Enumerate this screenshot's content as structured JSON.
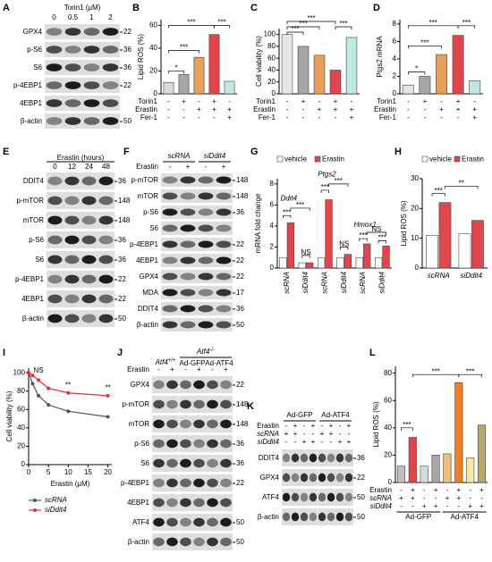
{
  "panels": {
    "A": {
      "letter": "A",
      "title": "Torin1 (μM)",
      "lanes": [
        "0",
        "0.5",
        "1",
        "2"
      ],
      "rows": [
        {
          "label": "GPX4",
          "mw": "22"
        },
        {
          "label": "p-S6",
          "mw": "36"
        },
        {
          "label": "S6",
          "mw": "36"
        },
        {
          "label": "p-4EBP1",
          "mw": "22"
        },
        {
          "label": "4EBP1"
        },
        {
          "label": "β-actin",
          "mw": "50"
        }
      ]
    },
    "B": {
      "letter": "B",
      "chart": {
        "type": "bar",
        "ylabel": "Lipid ROS (%)",
        "ylim": [
          0,
          65
        ],
        "yticks": [
          0,
          20,
          40,
          60
        ],
        "values": [
          10,
          17,
          32,
          52,
          11
        ],
        "colors": [
          "#d9d9d9",
          "#a6a6a6",
          "#e8a15a",
          "#e0474c",
          "#bfe8e2"
        ],
        "conditions": [
          {
            "label": "Torin1",
            "signs": [
              "-",
              "+",
              "-",
              "+",
              "-"
            ]
          },
          {
            "label": "Erastin",
            "signs": [
              "-",
              "-",
              "+",
              "+",
              "+"
            ]
          },
          {
            "label": "Fer-1",
            "signs": [
              "-",
              "-",
              "-",
              "-",
              "+"
            ]
          }
        ],
        "annotations": [
          "*",
          "***",
          "***",
          "***"
        ]
      }
    },
    "C": {
      "letter": "C",
      "chart": {
        "type": "bar",
        "ylabel": "Cell viability (%)",
        "ylim": [
          0,
          110
        ],
        "yticks": [
          0,
          20,
          40,
          60,
          80,
          100
        ],
        "values": [
          100,
          80,
          65,
          40,
          95
        ],
        "colors": [
          "#e6e6e6",
          "#a6a6a6",
          "#e8a15a",
          "#e0474c",
          "#bfe8e2"
        ],
        "conditions": [
          {
            "label": "Torin1",
            "signs": [
              "-",
              "+",
              "-",
              "+",
              "-"
            ]
          },
          {
            "label": "Erastin",
            "signs": [
              "-",
              "-",
              "+",
              "+",
              "+"
            ]
          },
          {
            "label": "Fer-1",
            "signs": [
              "-",
              "-",
              "-",
              "-",
              "+"
            ]
          }
        ],
        "annotations": [
          "***",
          "***",
          "***",
          "***"
        ]
      }
    },
    "D": {
      "letter": "D",
      "chart": {
        "type": "bar",
        "ylabel": "Ptgs2 mRNA",
        "ylim": [
          0,
          8.5
        ],
        "yticks": [
          0,
          2,
          4,
          6,
          8
        ],
        "values": [
          1,
          2,
          4.5,
          6.7,
          1.5
        ],
        "colors": [
          "#e6e6e6",
          "#a6a6a6",
          "#e8a15a",
          "#e0474c",
          "#bfe8e2"
        ],
        "conditions": [
          {
            "label": "Torin1",
            "signs": [
              "-",
              "+",
              "-",
              "+",
              "-"
            ]
          },
          {
            "label": "Erastin",
            "signs": [
              "-",
              "-",
              "+",
              "+",
              "+"
            ]
          },
          {
            "label": "Fer-1",
            "signs": [
              "-",
              "-",
              "-",
              "-",
              "+"
            ]
          }
        ],
        "annotations": [
          "*",
          "***",
          "***",
          "***"
        ]
      }
    },
    "E": {
      "letter": "E",
      "title": "Erastin (hours)",
      "lanes": [
        "0",
        "12",
        "24",
        "48"
      ],
      "rows": [
        {
          "label": "DDIT4",
          "mw": "36"
        },
        {
          "label": "p-mTOR",
          "mw": "148"
        },
        {
          "label": "mTOR",
          "mw": "148"
        },
        {
          "label": "p-S6",
          "mw": "36"
        },
        {
          "label": "S6",
          "mw": "36"
        },
        {
          "label": "p-4EBP1",
          "mw": "22"
        },
        {
          "label": "4EBP1",
          "mw": "22"
        },
        {
          "label": "β-actin",
          "mw": "50"
        }
      ]
    },
    "F": {
      "letter": "F",
      "groups": [
        "scRNA",
        "siDdit4"
      ],
      "condition": {
        "label": "Erastin",
        "signs": [
          "-",
          "+",
          "-",
          "+"
        ]
      },
      "rows": [
        {
          "label": "p-mTOR",
          "mw": "148"
        },
        {
          "label": "mTOR",
          "mw": "148"
        },
        {
          "label": "p-S6",
          "mw": "36"
        },
        {
          "label": "S6"
        },
        {
          "label": "p-4EBP1",
          "mw": "22"
        },
        {
          "label": "4EBP1",
          "mw": "22"
        },
        {
          "label": "GPX4",
          "mw": "22"
        },
        {
          "label": "MDA",
          "mw": "17"
        },
        {
          "label": "DDIT4",
          "mw": "36"
        },
        {
          "label": "β-actin",
          "mw": "50"
        }
      ]
    },
    "G": {
      "letter": "G",
      "chart": {
        "type": "grouped_bar",
        "ylabel": "mRNA fold change",
        "ylim": [
          0,
          8.5
        ],
        "yticks": [
          0,
          2,
          4,
          6,
          8
        ],
        "groups": [
          "Ddit4",
          "Ptgs2",
          "Hmox1"
        ],
        "categories": [
          "scRNA",
          "siDdit4",
          "scRNA",
          "siDdit4",
          "scRNA",
          "siDdit4"
        ],
        "series": [
          {
            "name": "vehicle",
            "color": "#ffffff",
            "values": [
              1,
              0.5,
              1,
              1,
              1,
              1
            ]
          },
          {
            "name": "Erastin",
            "color": "#e0474c",
            "values": [
              4.3,
              0.5,
              6.5,
              1.3,
              2.3,
              2.1
            ]
          }
        ],
        "annotations": [
          "***",
          "***",
          "NS",
          "***",
          "***",
          "NS",
          "***",
          "NS",
          "***"
        ]
      }
    },
    "H": {
      "letter": "H",
      "chart": {
        "type": "grouped_bar",
        "ylabel": "Lipid ROS (%)",
        "ylim": [
          0,
          30
        ],
        "yticks": [
          0,
          10,
          20,
          30
        ],
        "categories": [
          "scRNA",
          "siDdit4"
        ],
        "series": [
          {
            "name": "vehicle",
            "color": "#ffffff",
            "values": [
              11,
              11.5
            ]
          },
          {
            "name": "Erastin",
            "color": "#e0474c",
            "values": [
              22,
              16
            ]
          }
        ],
        "annotations": [
          "***",
          "**"
        ]
      }
    },
    "I": {
      "letter": "I",
      "chart": {
        "type": "line",
        "ylabel": "Cell viability (%)",
        "xlabel": "Erastin (μM)",
        "xlim": [
          0,
          21
        ],
        "xticks": [
          0,
          5,
          10,
          15,
          20
        ],
        "ylim": [
          0,
          105
        ],
        "yticks": [
          0,
          20,
          40,
          60,
          80,
          100
        ],
        "x": [
          0,
          1,
          2.5,
          5,
          10,
          20
        ],
        "series": [
          {
            "name": "scRNA",
            "color": "#555555",
            "values": [
              100,
              88,
              75,
              65,
              58,
              52
            ]
          },
          {
            "name": "siDdit4",
            "color": "#e03030",
            "values": [
              100,
              97,
              92,
              83,
              78,
              75
            ]
          }
        ],
        "annotations": [
          "NS",
          "**",
          "**"
        ]
      }
    },
    "J": {
      "letter": "J",
      "wt": {
        "gene": "Atf4",
        "genotype": "+/+"
      },
      "ko": {
        "gene": "Atf4",
        "genotype": "-/-"
      },
      "groups": [
        "Ad-GFP",
        "Ad-ATF4"
      ],
      "condition": {
        "label": "Erastin",
        "signs": [
          "-",
          "+",
          "-",
          "+",
          "-",
          "+"
        ]
      },
      "rows": [
        {
          "label": "GPX4",
          "mw": "22"
        },
        {
          "label": "p-mTOR",
          "mw": "148"
        },
        {
          "label": "mTOR",
          "mw": "148"
        },
        {
          "label": "p-S6",
          "mw": "36"
        },
        {
          "label": "S6",
          "mw": "36"
        },
        {
          "label": "p-4EBP1",
          "mw": "22"
        },
        {
          "label": "4EBP1"
        },
        {
          "label": "ATF4",
          "mw": "50"
        },
        {
          "label": "β-actin",
          "mw": "50"
        }
      ]
    },
    "K": {
      "letter": "K",
      "groups": [
        "Ad-GFP",
        "Ad-ATF4"
      ],
      "conditions": [
        {
          "label": "Erastin",
          "signs": [
            "-",
            "+",
            "-",
            "+",
            "-",
            "+",
            "-",
            "+"
          ]
        },
        {
          "label": "scRNA",
          "signs": [
            "+",
            "+",
            "-",
            "-",
            "+",
            "+",
            "-",
            "-"
          ]
        },
        {
          "label": "siDdit4",
          "signs": [
            "-",
            "-",
            "+",
            "+",
            "-",
            "-",
            "+",
            "+"
          ]
        }
      ],
      "rows": [
        {
          "label": "DDIT4",
          "mw": "36"
        },
        {
          "label": "GPX4",
          "mw": "22"
        },
        {
          "label": "ATF4",
          "mw": "50"
        },
        {
          "label": "β-actin",
          "mw": "50"
        }
      ]
    },
    "L": {
      "letter": "L",
      "chart": {
        "type": "bar",
        "ylabel": "Lipid ROS (%)",
        "ylim": [
          0,
          85
        ],
        "yticks": [
          0,
          20,
          40,
          60,
          80
        ],
        "values": [
          12,
          33,
          12,
          20,
          21,
          73,
          18,
          42
        ],
        "colors": [
          "#bfbfbf",
          "#e0474c",
          "#d9d9d9",
          "#a6a6a6",
          "#e8c07a",
          "#f07f22",
          "#f5e9a8",
          "#b5a86a"
        ],
        "conditions": [
          {
            "label": "Erastin",
            "signs": [
              "-",
              "+",
              "-",
              "+",
              "-",
              "+",
              "-",
              "+"
            ]
          },
          {
            "label": "scRNA",
            "signs": [
              "+",
              "+",
              "-",
              "-",
              "+",
              "+",
              "-",
              "-"
            ]
          },
          {
            "label": "siDdit4",
            "signs": [
              "-",
              "-",
              "+",
              "+",
              "-",
              "-",
              "+",
              "+"
            ]
          }
        ],
        "groups": [
          "Ad-GFP",
          "Ad-ATF4"
        ],
        "annotations": [
          "***",
          "***",
          "***"
        ]
      }
    }
  }
}
